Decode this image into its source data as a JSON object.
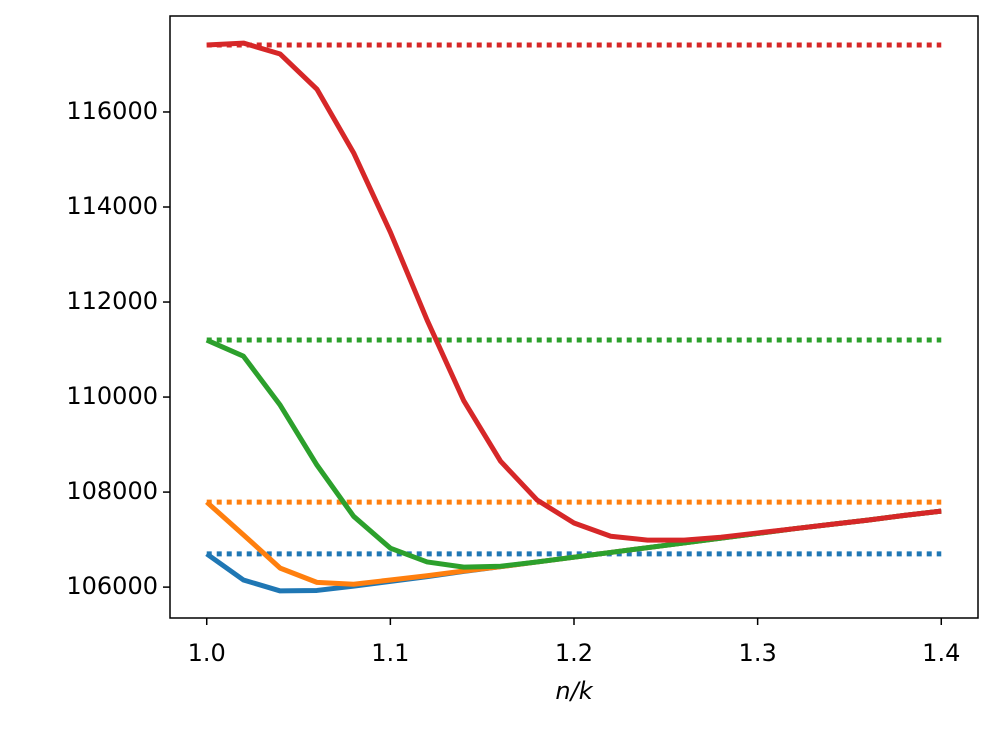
{
  "chart_data": {
    "type": "line",
    "x_label": "n/k",
    "x": [
      1.0,
      1.02,
      1.04,
      1.06,
      1.08,
      1.1,
      1.12,
      1.14,
      1.16,
      1.18,
      1.2,
      1.22,
      1.24,
      1.26,
      1.28,
      1.3,
      1.32,
      1.34,
      1.36,
      1.38,
      1.4
    ],
    "xlim": [
      0.98,
      1.42
    ],
    "xticks": [
      {
        "value": 1.0,
        "label": "1.0"
      },
      {
        "value": 1.1,
        "label": "1.1"
      },
      {
        "value": 1.2,
        "label": "1.2"
      },
      {
        "value": 1.3,
        "label": "1.3"
      },
      {
        "value": 1.4,
        "label": "1.4"
      }
    ],
    "ylim": [
      105350,
      118020
    ],
    "yticks": [
      106000,
      108000,
      110000,
      112000,
      114000,
      116000
    ],
    "grid": false,
    "series": [
      {
        "color": "#1f77b4",
        "baseline": 106700,
        "values": [
          106700,
          106150,
          105920,
          105930,
          106020,
          106120,
          106220,
          106330,
          106430,
          106530,
          106630,
          106730,
          106830,
          106930,
          107030,
          107130,
          107230,
          107320,
          107410,
          107510,
          107600
        ]
      },
      {
        "color": "#ff7f0e",
        "baseline": 107790,
        "values": [
          107790,
          107100,
          106400,
          106100,
          106060,
          106150,
          106240,
          106340,
          106430,
          106530,
          106630,
          106730,
          106830,
          106930,
          107030,
          107130,
          107230,
          107320,
          107410,
          107510,
          107600
        ]
      },
      {
        "color": "#2ca02c",
        "baseline": 111200,
        "values": [
          111200,
          110860,
          109830,
          108570,
          107490,
          106820,
          106530,
          106420,
          106440,
          106530,
          106630,
          106730,
          106830,
          106930,
          107030,
          107130,
          107230,
          107320,
          107410,
          107510,
          107600
        ]
      },
      {
        "color": "#d62728",
        "baseline": 117410,
        "values": [
          117410,
          117450,
          117220,
          116480,
          115140,
          113470,
          111620,
          109920,
          108650,
          107830,
          107350,
          107070,
          106990,
          106990,
          107050,
          107140,
          107230,
          107320,
          107410,
          107510,
          107600
        ]
      }
    ]
  }
}
